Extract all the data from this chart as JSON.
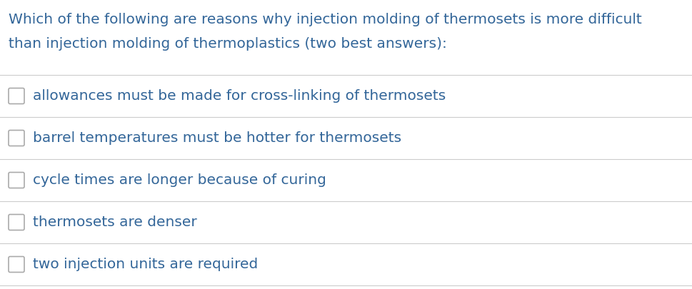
{
  "title_line1": "Which of the following are reasons why injection molding of thermosets is more difficult",
  "title_line2": "than injection molding of thermoplastics (two best answers):",
  "options": [
    "allowances must be made for cross-linking of thermosets",
    "barrel temperatures must be hotter for thermosets",
    "cycle times are longer because of curing",
    "thermosets are denser",
    "two injection units are required"
  ],
  "text_color": "#336699",
  "background_color": "#ffffff",
  "line_color": "#cccccc",
  "title_fontsize": 14.5,
  "option_fontsize": 14.5,
  "figwidth": 9.69,
  "figheight": 4.05,
  "dpi": 100
}
